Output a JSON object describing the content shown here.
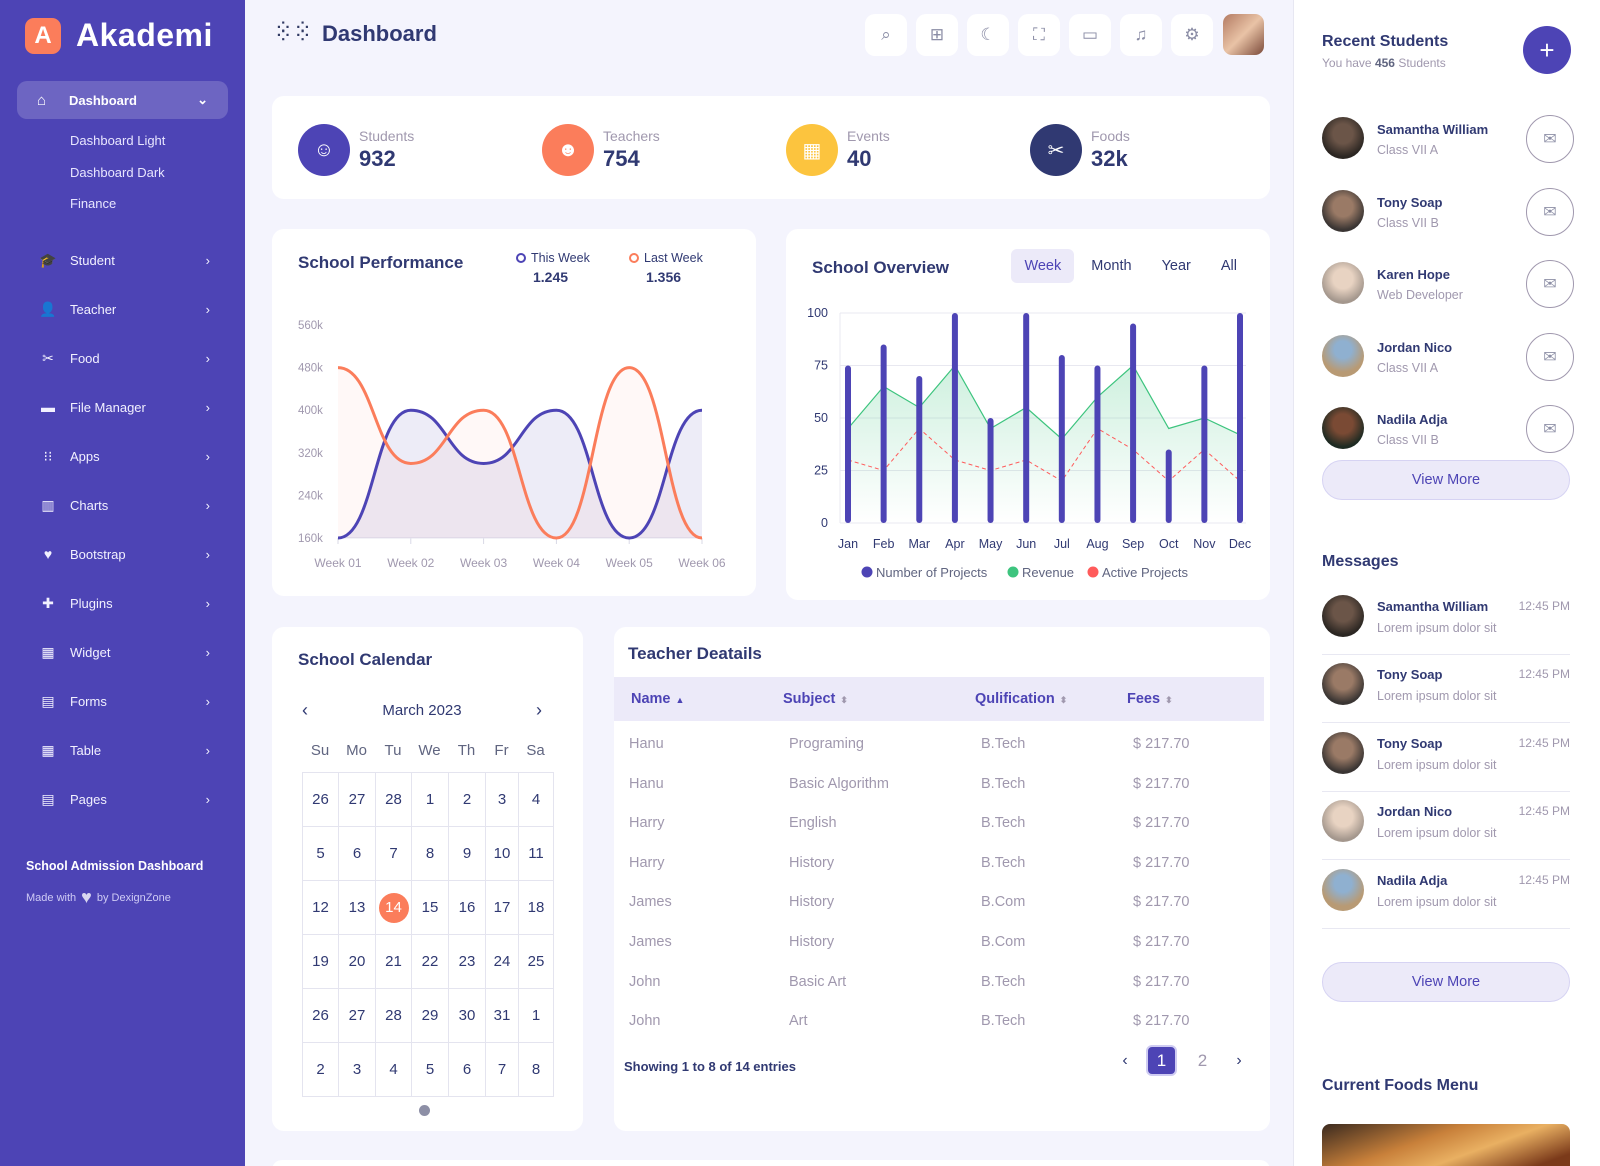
{
  "brand": {
    "initial": "A",
    "name": "Akademi"
  },
  "sidebar": {
    "active": {
      "label": "Dashboard",
      "icon": "home-icon"
    },
    "submenu": [
      "Dashboard Light",
      "Dashboard Dark",
      "Finance"
    ],
    "items": [
      {
        "label": "Student",
        "icon": "graduation-cap-icon"
      },
      {
        "label": "Teacher",
        "icon": "user-icon"
      },
      {
        "label": "Food",
        "icon": "utensils-icon"
      },
      {
        "label": "File Manager",
        "icon": "folder-icon"
      },
      {
        "label": "Apps",
        "icon": "apps-icon"
      },
      {
        "label": "Charts",
        "icon": "bar-chart-icon"
      },
      {
        "label": "Bootstrap",
        "icon": "heart-icon"
      },
      {
        "label": "Plugins",
        "icon": "puzzle-icon"
      },
      {
        "label": "Widget",
        "icon": "widget-icon"
      },
      {
        "label": "Forms",
        "icon": "file-icon"
      },
      {
        "label": "Table",
        "icon": "table-icon"
      },
      {
        "label": "Pages",
        "icon": "pages-icon"
      }
    ],
    "footer_title": "School Admission Dashboard",
    "footer_made": "Made with",
    "footer_by": "by DexignZone"
  },
  "header": {
    "title": "Dashboard",
    "buttons": [
      "search-icon",
      "apps-grid-icon",
      "moon-icon",
      "fullscreen-icon",
      "chat-icon",
      "bell-icon",
      "gear-icon"
    ]
  },
  "stats": [
    {
      "label": "Students",
      "value": "932",
      "color": "#4d44b5",
      "icon": "student-icon"
    },
    {
      "label": "Teachers",
      "value": "754",
      "color": "#fb7d5b",
      "icon": "teacher-icon"
    },
    {
      "label": "Events",
      "value": "40",
      "color": "#fcc43e",
      "icon": "calendar-icon"
    },
    {
      "label": "Foods",
      "value": "32k",
      "color": "#303972",
      "icon": "utensils-icon"
    }
  ],
  "performance": {
    "title": "School Performance",
    "legend": [
      {
        "label": "This Week",
        "value": "1.245",
        "color": "#4d44b5"
      },
      {
        "label": "Last Week",
        "value": "1.356",
        "color": "#fb7d5b"
      }
    ]
  },
  "overview": {
    "title": "School Overview",
    "tabs": [
      "Week",
      "Month",
      "Year",
      "All"
    ],
    "legend": [
      "Number of Projects",
      "Revenue",
      "Active Projects"
    ]
  },
  "chart_data": [
    {
      "type": "area",
      "title": "School Performance",
      "categories": [
        "Week 01",
        "Week 02",
        "Week 03",
        "Week 04",
        "Week 05",
        "Week 06"
      ],
      "yticks": [
        "560k",
        "480k",
        "400k",
        "320k",
        "240k",
        "160k"
      ],
      "ylim": [
        160,
        560
      ],
      "series": [
        {
          "name": "This Week",
          "values": [
            160,
            400,
            300,
            400,
            160,
            400
          ],
          "color": "#4d44b5"
        },
        {
          "name": "Last Week",
          "values": [
            480,
            300,
            400,
            160,
            480,
            160
          ],
          "color": "#fb7d5b"
        }
      ]
    },
    {
      "type": "bar",
      "title": "School Overview",
      "categories": [
        "Jan",
        "Feb",
        "Mar",
        "Apr",
        "May",
        "Jun",
        "Jul",
        "Aug",
        "Sep",
        "Oct",
        "Nov",
        "Dec"
      ],
      "yticks": [
        "100",
        "75",
        "50",
        "25",
        "0"
      ],
      "ylim": [
        0,
        100
      ],
      "series": [
        {
          "name": "Number of Projects",
          "type": "bar",
          "values": [
            75,
            85,
            70,
            100,
            50,
            100,
            80,
            75,
            95,
            35,
            75,
            100
          ],
          "color": "#4d44b5"
        },
        {
          "name": "Revenue",
          "type": "area",
          "values": [
            45,
            65,
            55,
            75,
            45,
            55,
            40,
            60,
            75,
            45,
            50,
            42
          ],
          "color": "#3dc47e"
        },
        {
          "name": "Active Projects",
          "type": "line",
          "values": [
            30,
            25,
            45,
            30,
            25,
            30,
            20,
            45,
            35,
            20,
            35,
            20
          ],
          "color": "#ff5b5b"
        }
      ]
    }
  ],
  "calendar": {
    "title": "School Calendar",
    "month": "March 2023",
    "dow": [
      "Su",
      "Mo",
      "Tu",
      "We",
      "Th",
      "Fr",
      "Sa"
    ],
    "days": [
      "26",
      "27",
      "28",
      "1",
      "2",
      "3",
      "4",
      "5",
      "6",
      "7",
      "8",
      "9",
      "10",
      "11",
      "12",
      "13",
      "14",
      "15",
      "16",
      "17",
      "18",
      "19",
      "20",
      "21",
      "22",
      "23",
      "24",
      "25",
      "26",
      "27",
      "28",
      "29",
      "30",
      "31",
      "1",
      "2",
      "3",
      "4",
      "5",
      "6",
      "7",
      "8"
    ],
    "today_index": 16
  },
  "teachers": {
    "title": "Teacher Deatails",
    "columns": [
      "Name",
      "Subject",
      "Qulification",
      "Fees"
    ],
    "rows": [
      [
        "Hanu",
        "Programing",
        "B.Tech",
        "$ 217.70"
      ],
      [
        "Hanu",
        "Basic Algorithm",
        "B.Tech",
        "$ 217.70"
      ],
      [
        "Harry",
        "English",
        "B.Tech",
        "$ 217.70"
      ],
      [
        "Harry",
        "History",
        "B.Tech",
        "$ 217.70"
      ],
      [
        "James",
        "History",
        "B.Com",
        "$ 217.70"
      ],
      [
        "James",
        "History",
        "B.Com",
        "$ 217.70"
      ],
      [
        "John",
        "Basic Art",
        "B.Tech",
        "$ 217.70"
      ],
      [
        "John",
        "Art",
        "B.Tech",
        "$ 217.70"
      ]
    ],
    "footer": "Showing 1 to 8 of 14 entries",
    "pages": [
      "1",
      "2"
    ]
  },
  "recent": {
    "title": "Recent Students",
    "sub_pre": "You have",
    "sub_count": "456",
    "sub_post": "Students",
    "students": [
      {
        "name": "Samantha William",
        "class": "Class VII A"
      },
      {
        "name": "Tony Soap",
        "class": "Class VII B"
      },
      {
        "name": "Karen Hope",
        "class": "Web Developer"
      },
      {
        "name": "Jordan Nico",
        "class": "Class VII A"
      },
      {
        "name": "Nadila Adja",
        "class": "Class VII B"
      }
    ],
    "view_more": "View More"
  },
  "messages": {
    "title": "Messages",
    "items": [
      {
        "name": "Samantha William",
        "text": "Lorem ipsum dolor sit",
        "time": "12:45 PM"
      },
      {
        "name": "Tony Soap",
        "text": "Lorem ipsum dolor sit",
        "time": "12:45 PM"
      },
      {
        "name": "Tony Soap",
        "text": "Lorem ipsum dolor sit",
        "time": "12:45 PM"
      },
      {
        "name": "Jordan Nico",
        "text": "Lorem ipsum dolor sit",
        "time": "12:45 PM"
      },
      {
        "name": "Nadila Adja",
        "text": "Lorem ipsum dolor sit",
        "time": "12:45 PM"
      }
    ],
    "view_more": "View More"
  },
  "foods": {
    "title": "Current Foods Menu"
  }
}
